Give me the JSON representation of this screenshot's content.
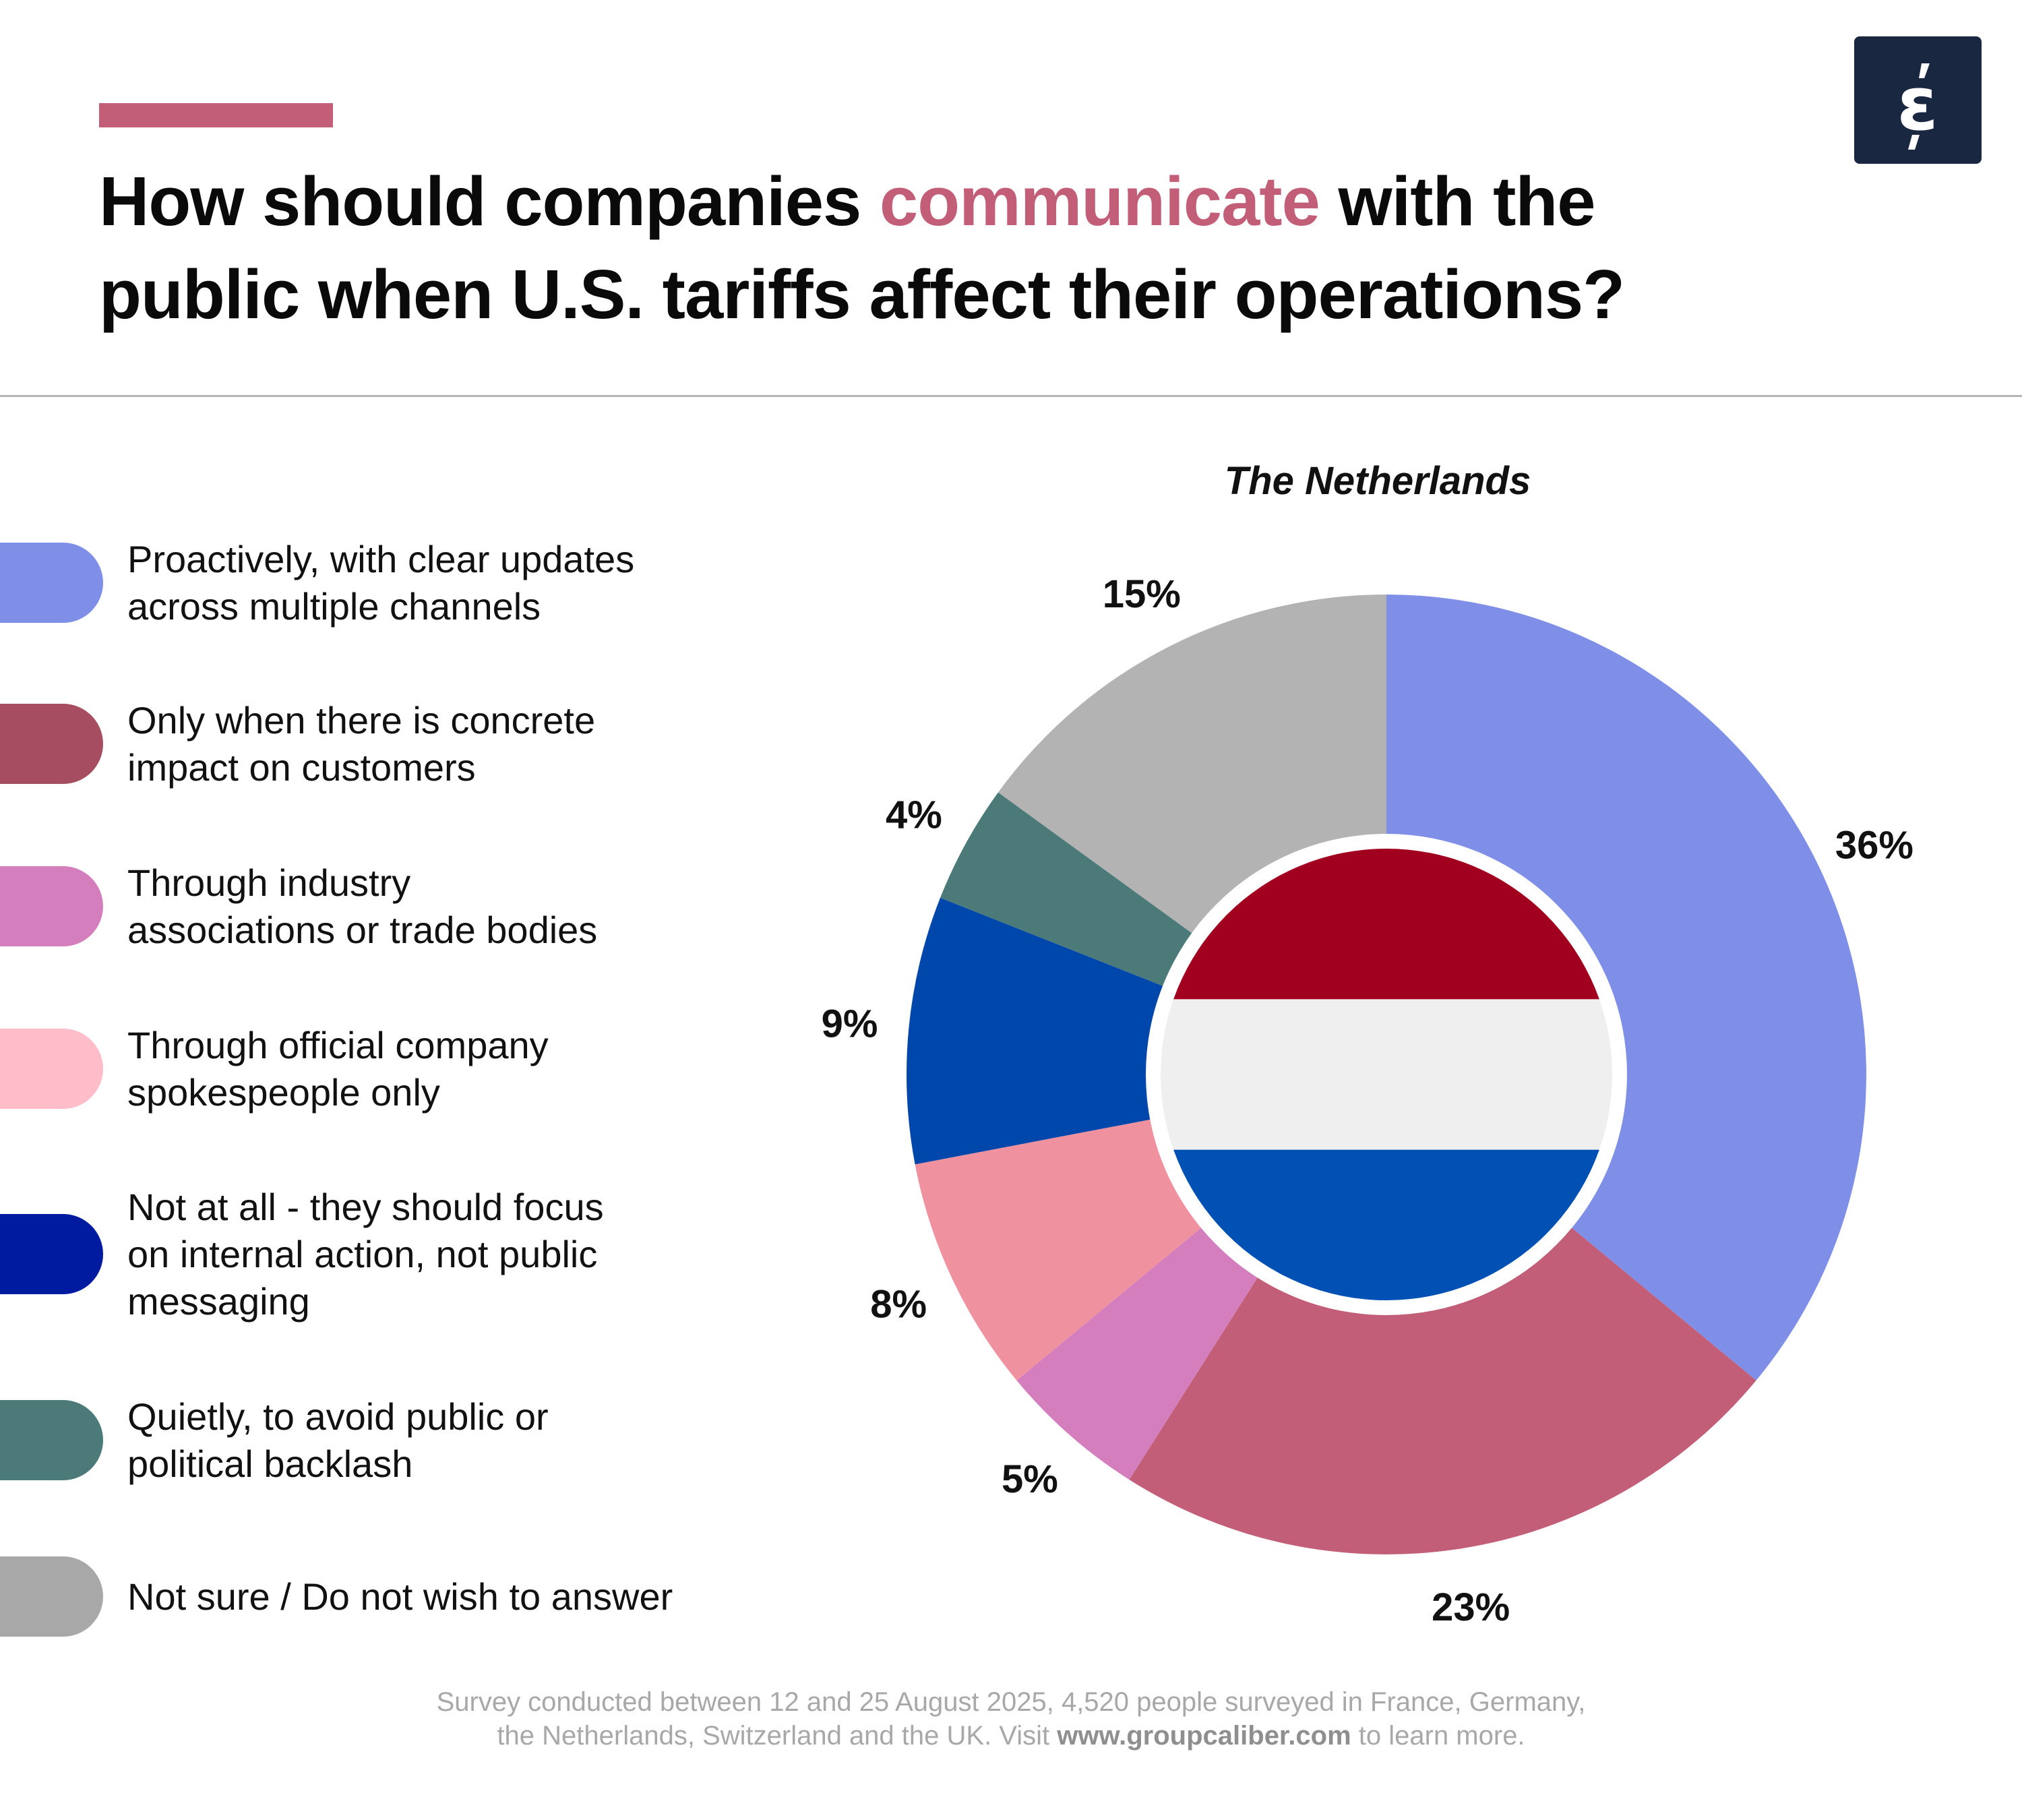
{
  "header": {
    "title_part1": "How should companies ",
    "title_highlight": "communicate",
    "title_part2": " with the public when U.S. tariffs affect their operations?",
    "accent_color": "#C25E78",
    "logo_text": "έ"
  },
  "chart_data": {
    "type": "donut",
    "title": "The Netherlands",
    "start": "top",
    "direction": "clockwise",
    "slices": [
      {
        "label": "Proactively, with clear updates across multiple channels",
        "value": 36,
        "value_label": "36%",
        "color": "#7F8FE8"
      },
      {
        "label": "Only when there is concrete impact on customers",
        "value": 23,
        "value_label": "23%",
        "color": "#C25E78"
      },
      {
        "label": "Through industry associations or trade bodies",
        "value": 5,
        "value_label": "5%",
        "color": "#D47EBE"
      },
      {
        "label": "Through official company spokespeople only",
        "value": 8,
        "value_label": "8%",
        "color": "#EF919F"
      },
      {
        "label": "Not at all - they should focus on internal action, not public messaging",
        "value": 9,
        "value_label": "9%",
        "color": "#0047AB"
      },
      {
        "label": "Quietly, to avoid public or political backlash",
        "value": 4,
        "value_label": "4%",
        "color": "#4C7A79"
      },
      {
        "label": "Not sure / Do not wish to answer",
        "value": 15,
        "value_label": "15%",
        "color": "#B3B3B3"
      }
    ],
    "center_flag": {
      "country": "The Netherlands",
      "colors": [
        "#A1001F",
        "#EFEFEF",
        "#0051B3"
      ]
    }
  },
  "legend": [
    {
      "label": "Proactively, with clear updates\nacross multiple channels",
      "color": "#7F8FE8"
    },
    {
      "label": "Only when there is concrete\nimpact on customers",
      "color": "#A64D62"
    },
    {
      "label": "Through industry\nassociations or trade bodies",
      "color": "#D47EBE"
    },
    {
      "label": "Through official company\nspokespeople only",
      "color": "#FFBDCA"
    },
    {
      "label": "Not at all - they should focus\non internal action, not public\nmessaging",
      "color": "#001AA0"
    },
    {
      "label": "Quietly, to avoid public or\npolitical backlash",
      "color": "#4C7A79"
    },
    {
      "label": "Not sure / Do not wish to answer",
      "color": "#A8A8A8"
    }
  ],
  "footer": {
    "line1": "Survey conducted between 12 and 25 August 2025, 4,520 people surveyed in France, Germany,",
    "line2_pre": "the Netherlands, Switzerland and the UK. Visit ",
    "link": "www.groupcaliber.com",
    "line2_post": " to learn more."
  }
}
